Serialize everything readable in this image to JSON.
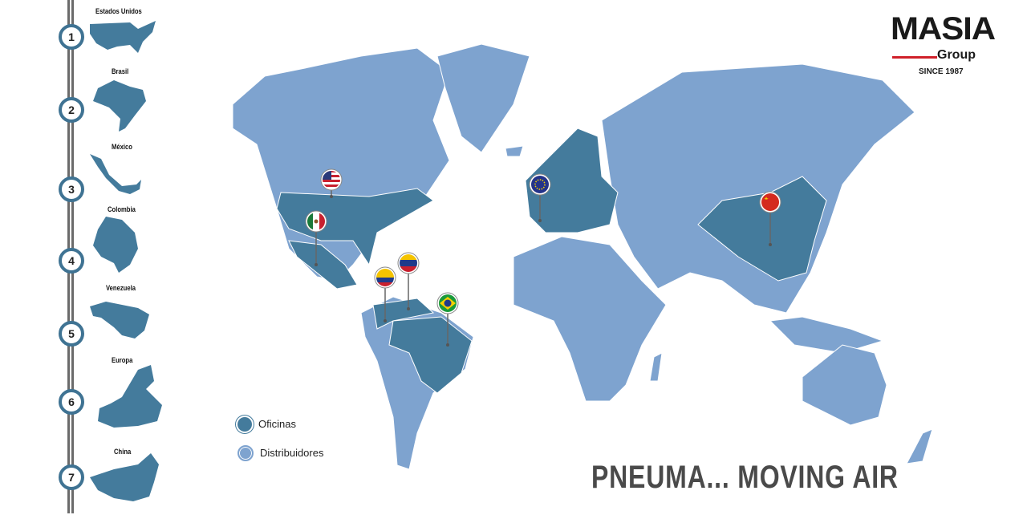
{
  "colors": {
    "offices": "#447b9c",
    "distributors": "#7ea3cf",
    "rail": "#6b6b6b",
    "accent": "#d0202a"
  },
  "sidebar": {
    "items": [
      {
        "number": "1",
        "label": "Estados Unidos"
      },
      {
        "number": "2",
        "label": "Brasil"
      },
      {
        "number": "3",
        "label": "México"
      },
      {
        "number": "4",
        "label": "Colombia"
      },
      {
        "number": "5",
        "label": "Venezuela"
      },
      {
        "number": "6",
        "label": "Europa"
      },
      {
        "number": "7",
        "label": "China"
      }
    ]
  },
  "logo": {
    "name": "MASIA",
    "sub": "Group",
    "since": "SINCE 1987"
  },
  "legend": {
    "offices": "Oficinas",
    "distributors": "Distribuidores"
  },
  "pins": [
    {
      "flag": "usa-flag"
    },
    {
      "flag": "mexico-flag"
    },
    {
      "flag": "colombia-flag"
    },
    {
      "flag": "venezuela-flag"
    },
    {
      "flag": "brazil-flag"
    },
    {
      "flag": "eu-flag"
    },
    {
      "flag": "china-flag"
    }
  ],
  "slogan": "PNEUMA... MOVING AIR"
}
